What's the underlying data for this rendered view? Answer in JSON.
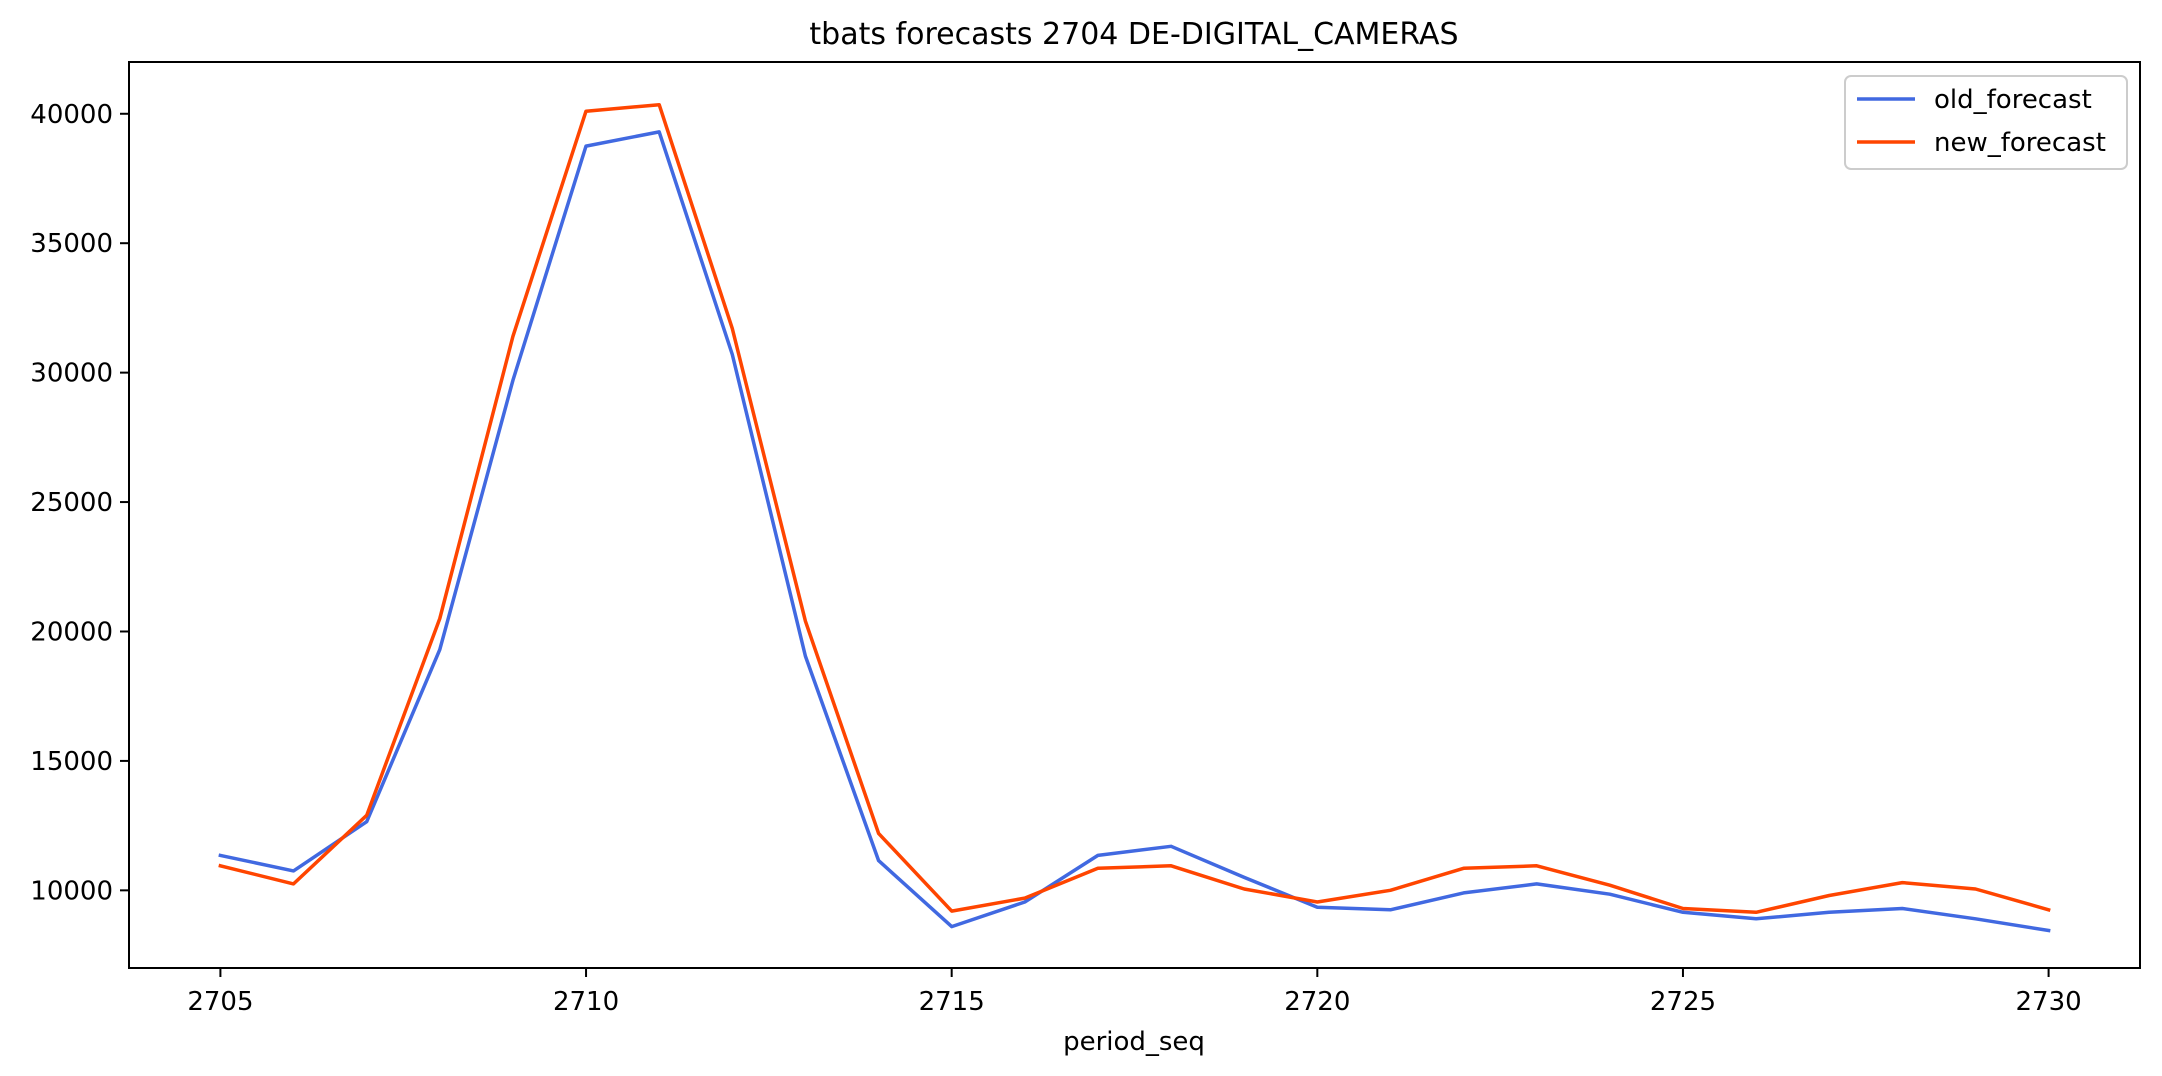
{
  "chart_data": {
    "type": "line",
    "title": "tbats forecasts 2704 DE-DIGITAL_CAMERAS",
    "xlabel": "period_seq",
    "ylabel": "",
    "x": [
      2705,
      2706,
      2707,
      2708,
      2709,
      2710,
      2711,
      2712,
      2713,
      2714,
      2715,
      2716,
      2717,
      2718,
      2719,
      2720,
      2721,
      2722,
      2723,
      2724,
      2725,
      2726,
      2727,
      2728,
      2729,
      2730
    ],
    "xlim": [
      2703.75,
      2731.25
    ],
    "ylim": [
      7000,
      42000
    ],
    "xticks": [
      2705,
      2710,
      2715,
      2720,
      2725,
      2730
    ],
    "yticks": [
      10000,
      15000,
      20000,
      25000,
      30000,
      35000,
      40000
    ],
    "grid": false,
    "legend_position": "top-right",
    "series": [
      {
        "name": "old_forecast",
        "color": "#4169E1",
        "values": [
          11350,
          10750,
          12650,
          19300,
          29700,
          38750,
          39300,
          30700,
          19050,
          11150,
          8600,
          9550,
          11350,
          11700,
          10500,
          9350,
          9250,
          9900,
          10250,
          9850,
          9150,
          8900,
          9150,
          9300,
          8900,
          8450
        ]
      },
      {
        "name": "new_forecast",
        "color": "#FF4500",
        "values": [
          10950,
          10250,
          12900,
          20500,
          31400,
          40100,
          40350,
          31700,
          20400,
          12200,
          9200,
          9700,
          10850,
          10950,
          10050,
          9550,
          10000,
          10850,
          10950,
          10200,
          9300,
          9150,
          9800,
          10300,
          10050,
          9250
        ]
      }
    ]
  }
}
